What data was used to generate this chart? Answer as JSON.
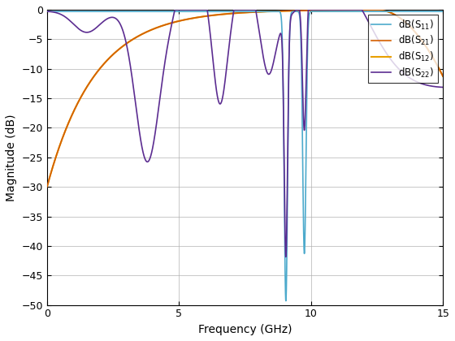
{
  "xlabel": "Frequency (GHz)",
  "ylabel": "Magnitude (dB)",
  "xlim": [
    0,
    15
  ],
  "ylim": [
    -50,
    0
  ],
  "xticks": [
    0,
    5,
    10,
    15
  ],
  "yticks": [
    0,
    -5,
    -10,
    -15,
    -20,
    -25,
    -30,
    -35,
    -40,
    -45,
    -50
  ],
  "colors": {
    "S11": "#4daacc",
    "S21": "#d45f00",
    "S12": "#e8a000",
    "S22": "#5c2d91"
  },
  "background": "#ffffff",
  "grid_color": "#b0b0b0"
}
